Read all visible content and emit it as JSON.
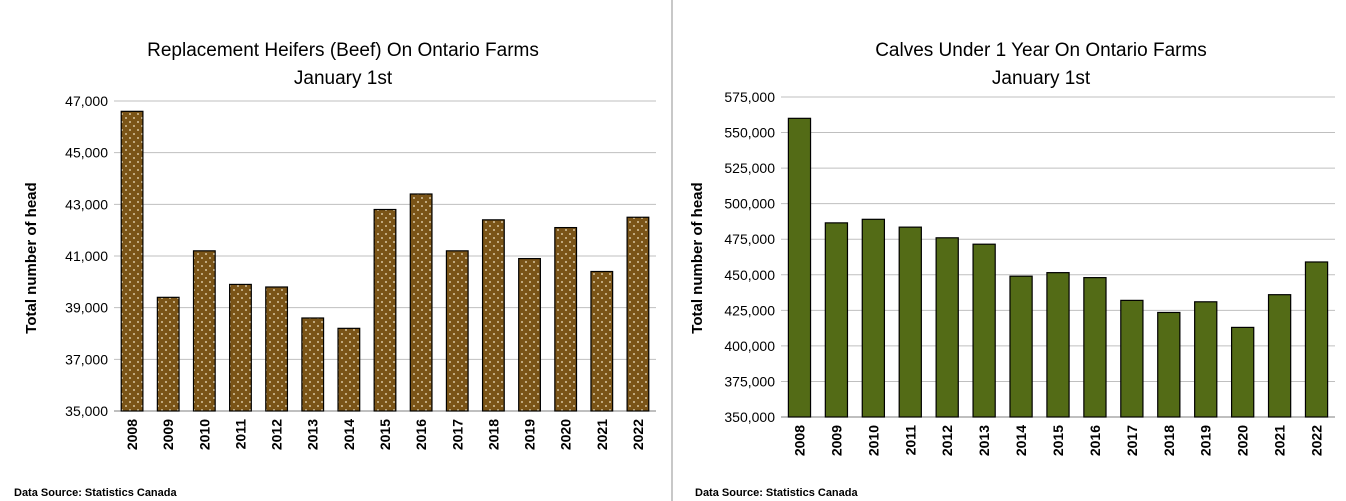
{
  "chart_data": [
    {
      "type": "bar",
      "title": "Replacement Heifers (Beef) On Ontario Farms",
      "subtitle": "January 1st",
      "ylabel": "Total number of head",
      "xlabel": "",
      "categories": [
        "2008",
        "2009",
        "2010",
        "2011",
        "2012",
        "2013",
        "2014",
        "2015",
        "2016",
        "2017",
        "2018",
        "2019",
        "2020",
        "2021",
        "2022"
      ],
      "values": [
        46600,
        39400,
        41200,
        39900,
        39800,
        38600,
        38200,
        42800,
        43400,
        41200,
        42400,
        40900,
        42100,
        40400,
        42500
      ],
      "ylim": [
        35000,
        47000
      ],
      "yticks": [
        "35,000",
        "37,000",
        "39,000",
        "41,000",
        "43,000",
        "45,000",
        "47,000"
      ],
      "grid": true,
      "bar_color": "#7a5417",
      "source": "Data Source: Statistics Canada"
    },
    {
      "type": "bar",
      "title": "Calves Under 1 Year On Ontario Farms",
      "subtitle": "January 1st",
      "ylabel": "Total number of head",
      "xlabel": "",
      "categories": [
        "2008",
        "2009",
        "2010",
        "2011",
        "2012",
        "2013",
        "2014",
        "2015",
        "2016",
        "2017",
        "2018",
        "2019",
        "2020",
        "2021",
        "2022"
      ],
      "values": [
        560000,
        486500,
        489000,
        483500,
        476000,
        471500,
        449000,
        451500,
        448000,
        432000,
        423500,
        431000,
        413000,
        436000,
        459000
      ],
      "ylim": [
        350000,
        575000
      ],
      "yticks": [
        "350,000",
        "375,000",
        "400,000",
        "425,000",
        "450,000",
        "475,000",
        "500,000",
        "525,000",
        "550,000",
        "575,000"
      ],
      "grid": true,
      "bar_color": "#536b16",
      "source": "Data Source: Statistics Canada"
    }
  ]
}
